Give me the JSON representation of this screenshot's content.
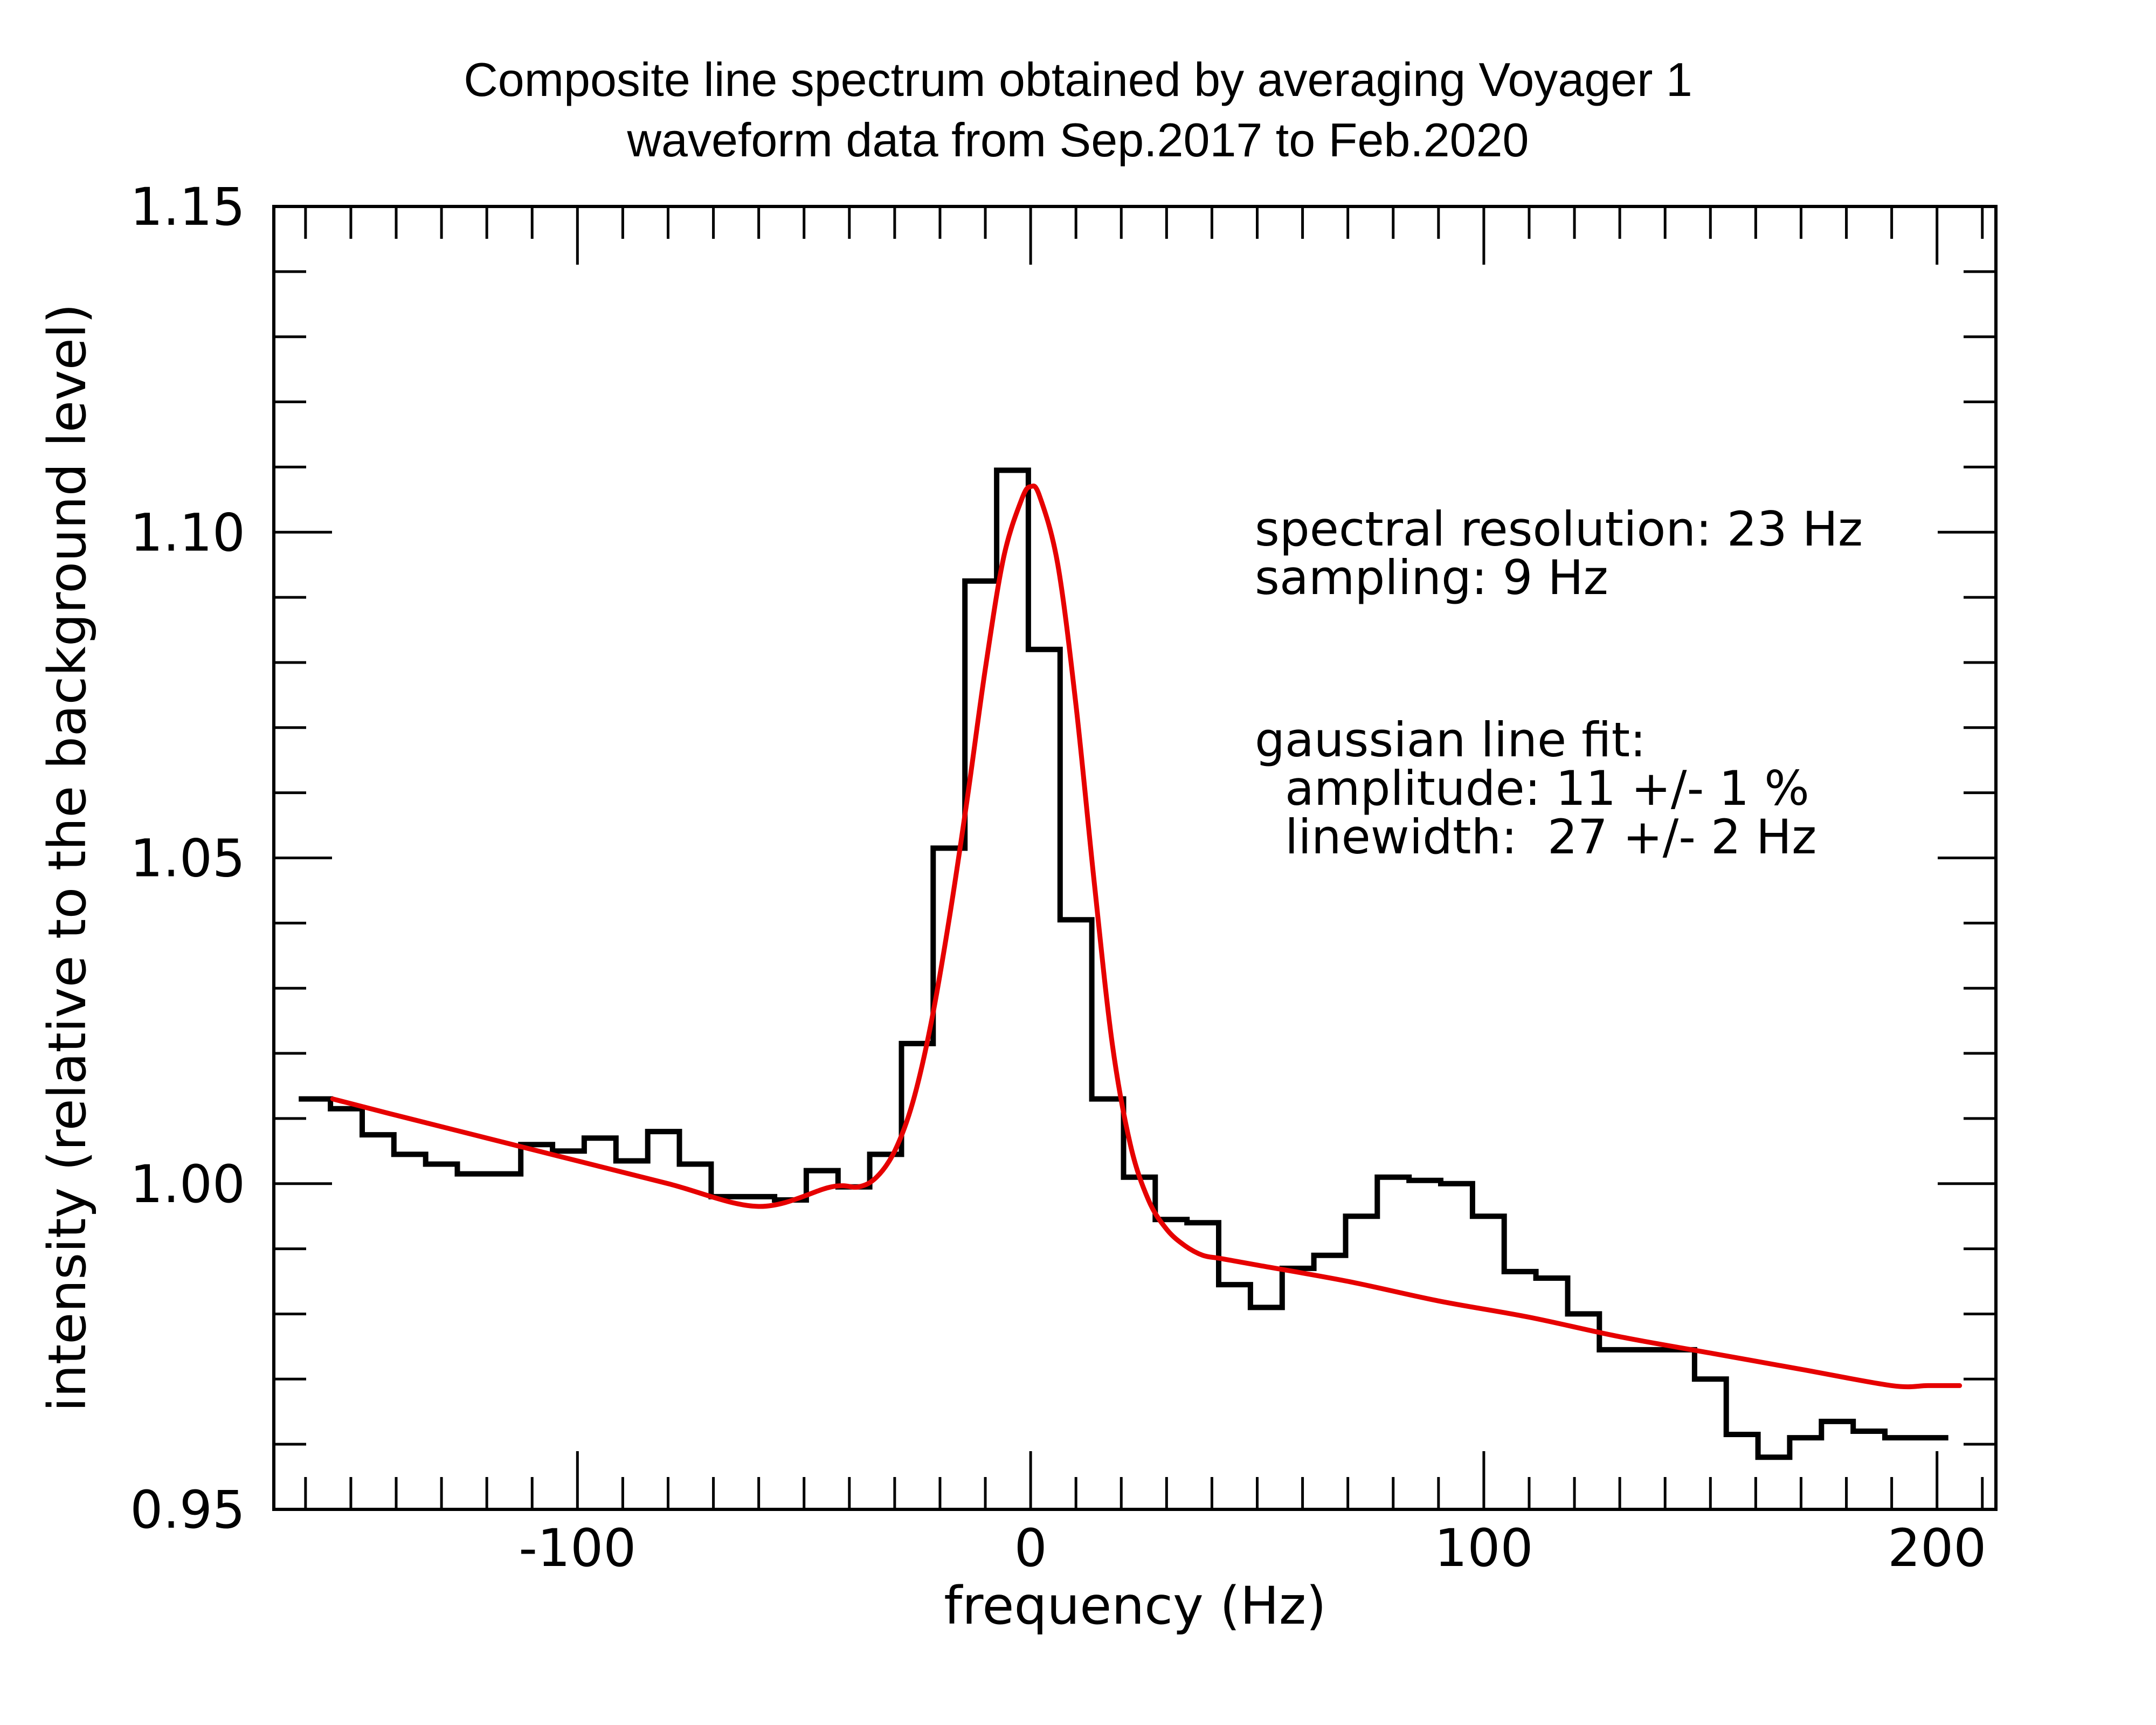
{
  "chart_data": {
    "type": "line",
    "title": [
      "Composite line spectrum obtained by averaging Voyager 1",
      "waveform data from Sep.2017 to Feb.2020"
    ],
    "xlabel": "frequency (Hz)",
    "ylabel": "intensity (relative to the background level)",
    "xlim": [
      -167,
      213
    ],
    "ylim": [
      0.95,
      1.15
    ],
    "x_ticks": [
      -100,
      0,
      100,
      200
    ],
    "x_tick_labels": [
      "-100",
      "0",
      "100",
      "200"
    ],
    "y_ticks": [
      0.95,
      1.0,
      1.05,
      1.1,
      1.15
    ],
    "y_tick_labels": [
      "0.95",
      "1.00",
      "1.05",
      "1.10",
      "1.15"
    ],
    "annotations": [
      "spectral resolution: 23 Hz",
      "sampling: 9 Hz",
      "gaussian line fit:",
      "  amplitude: 11 +/- 1 %",
      "  linewidth:  27 +/- 2 Hz"
    ],
    "series": [
      {
        "name": "composite spectrum",
        "style": "step",
        "color": "#000000",
        "x": [
          -158,
          -151,
          -144,
          -137,
          -130,
          -123,
          -116,
          -109,
          -102,
          -95,
          -88,
          -81,
          -74,
          -67,
          -60,
          -53,
          -46,
          -39,
          -32,
          -25,
          -18,
          -11,
          -4,
          3,
          10,
          17,
          24,
          31,
          38,
          45,
          52,
          59,
          66,
          73,
          80,
          87,
          94,
          101,
          108,
          115,
          122,
          129,
          136,
          143,
          150,
          157,
          164,
          171,
          178,
          185,
          192,
          199
        ],
        "values": [
          1.013,
          1.0115,
          1.0075,
          1.0045,
          1.003,
          1.0015,
          1.0015,
          1.006,
          1.005,
          1.007,
          1.0035,
          1.008,
          1.003,
          0.998,
          0.998,
          0.9975,
          1.002,
          0.9995,
          1.0045,
          1.0215,
          1.0515,
          1.0925,
          1.1095,
          1.082,
          1.0405,
          1.013,
          1.001,
          0.9945,
          0.994,
          0.9845,
          0.981,
          0.987,
          0.989,
          0.995,
          1.001,
          1.0005,
          1.0,
          0.995,
          0.9865,
          0.9855,
          0.98,
          0.9745,
          0.9745,
          0.9745,
          0.97,
          0.9615,
          0.958,
          0.961,
          0.9635,
          0.962,
          0.961,
          0.961
        ]
      },
      {
        "name": "gaussian line fit",
        "style": "line",
        "color": "#e60000",
        "x": [
          -154,
          -140,
          -120,
          -100,
          -80,
          -60,
          -44,
          -38,
          -34,
          -30,
          -26,
          -22,
          -18,
          -14,
          -10,
          -6,
          -2,
          0,
          2,
          6,
          10,
          14,
          18,
          22,
          26,
          30,
          34,
          38,
          42,
          50,
          70,
          90,
          110,
          130,
          150,
          170,
          190,
          198,
          205
        ],
        "values": [
          1.013,
          1.0105,
          1.007,
          1.0035,
          1.0,
          0.9965,
          0.9995,
          0.9995,
          1.001,
          1.005,
          1.0125,
          1.0245,
          1.0405,
          1.059,
          1.079,
          1.096,
          1.105,
          1.107,
          1.1055,
          1.095,
          1.0735,
          1.0465,
          1.0215,
          1.006,
          0.9975,
          0.993,
          0.9905,
          0.989,
          0.9885,
          0.9875,
          0.985,
          0.982,
          0.9795,
          0.9765,
          0.974,
          0.9715,
          0.969,
          0.969,
          0.969
        ]
      }
    ]
  }
}
